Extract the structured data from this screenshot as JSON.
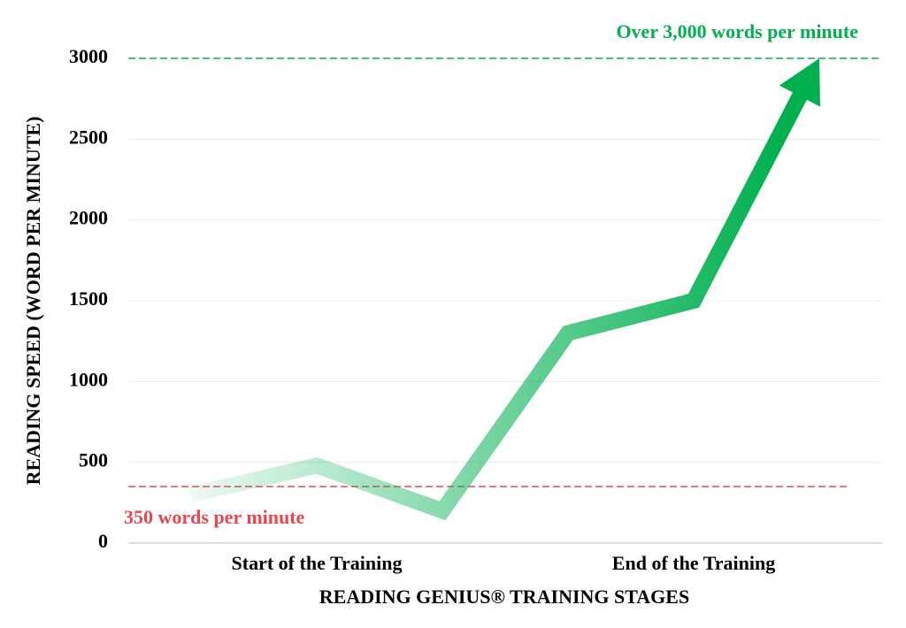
{
  "chart_data": {
    "type": "line",
    "x_label": "READING GENIUS® TRAINING STAGES",
    "y_label": "READING SPEED (WORD PER MINUTE)",
    "categories": [
      null,
      "Start of the Training",
      null,
      null,
      "End of the Training",
      null
    ],
    "series": [
      {
        "name": "Reading speed",
        "color": "#00b050",
        "values": [
          300,
          480,
          200,
          1300,
          1500,
          3000
        ]
      }
    ],
    "ylim": [
      0,
      3000
    ],
    "yticks": [
      0,
      500,
      1000,
      1500,
      2000,
      2500,
      3000
    ],
    "grid": true,
    "reference_lines": [
      {
        "value": 3000,
        "label": "Over 3,000 words per minute",
        "color": "#00b050"
      },
      {
        "value": 350,
        "label": "350 words per minute",
        "color": "#e8474f"
      }
    ]
  }
}
